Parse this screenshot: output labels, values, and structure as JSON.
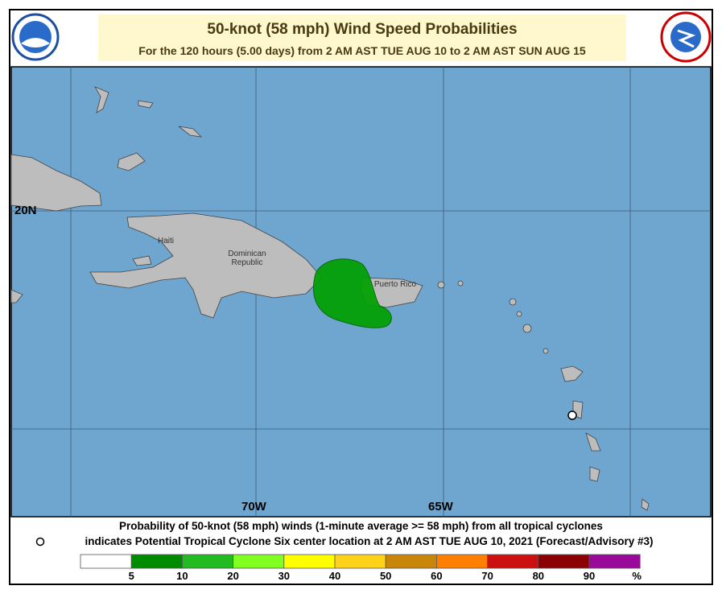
{
  "header": {
    "title": "50-knot (58 mph) Wind Speed Probabilities",
    "subtitle": "For the 120 hours (5.00 days) from 2 AM AST TUE AUG 10 to 2 AM AST SUN AUG 15"
  },
  "map": {
    "grid_labels": [
      "20N",
      "70W",
      "65W"
    ],
    "place_labels": [
      "Haiti",
      "Dominican Republic",
      "Puerto Rico"
    ]
  },
  "footer": {
    "line1": "Probability of 50-knot (58 mph) winds (1-minute average >= 58 mph) from all tropical cyclones",
    "line2": "indicates Potential Tropical Cyclone Six center location at 2 AM AST TUE AUG 10, 2021 (Forecast/Advisory #3)"
  },
  "legend": {
    "bins": [
      {
        "color": "#ffffff"
      },
      {
        "color": "#008c00"
      },
      {
        "color": "#22bb22"
      },
      {
        "color": "#80ff20"
      },
      {
        "color": "#ffff00"
      },
      {
        "color": "#ffd21a"
      },
      {
        "color": "#c8860b"
      },
      {
        "color": "#ff8000"
      },
      {
        "color": "#cc1010"
      },
      {
        "color": "#8b0000"
      },
      {
        "color": "#9a0a9a"
      }
    ],
    "ticks": [
      5,
      10,
      20,
      30,
      40,
      50,
      60,
      70,
      80,
      90
    ],
    "unit": "%"
  }
}
